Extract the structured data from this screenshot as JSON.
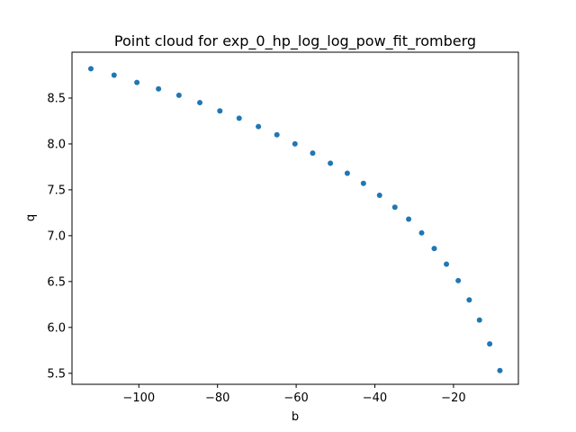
{
  "chart_data": {
    "type": "scatter",
    "title": "Point cloud for exp_0_hp_log_log_pow_fit_romberg",
    "xlabel": "b",
    "ylabel": "q",
    "xlim": [
      -117.0,
      -3.5
    ],
    "ylim": [
      5.38,
      9.0
    ],
    "grid": false,
    "marker_color": "#1f77b4",
    "xticks": [
      {
        "value": -100,
        "label": "−100"
      },
      {
        "value": -80,
        "label": "−80"
      },
      {
        "value": -60,
        "label": "−60"
      },
      {
        "value": -40,
        "label": "−40"
      },
      {
        "value": -20,
        "label": "−20"
      }
    ],
    "yticks": [
      {
        "value": 5.5,
        "label": "5.5"
      },
      {
        "value": 6.0,
        "label": "6.0"
      },
      {
        "value": 6.5,
        "label": "6.5"
      },
      {
        "value": 7.0,
        "label": "7.0"
      },
      {
        "value": 7.5,
        "label": "7.5"
      },
      {
        "value": 8.0,
        "label": "8.0"
      },
      {
        "value": 8.5,
        "label": "8.5"
      }
    ],
    "x": [
      -112.2,
      -106.3,
      -100.5,
      -95.0,
      -89.8,
      -84.5,
      -79.4,
      -74.5,
      -69.6,
      -64.9,
      -60.3,
      -55.8,
      -51.3,
      -47.0,
      -42.9,
      -38.8,
      -34.9,
      -31.4,
      -28.1,
      -24.9,
      -21.8,
      -18.8,
      -16.0,
      -13.4,
      -10.8,
      -8.2
    ],
    "y": [
      8.82,
      8.75,
      8.67,
      8.6,
      8.53,
      8.45,
      8.36,
      8.28,
      8.19,
      8.1,
      8.0,
      7.9,
      7.79,
      7.68,
      7.57,
      7.44,
      7.31,
      7.18,
      7.03,
      6.86,
      6.69,
      6.51,
      6.3,
      6.08,
      5.82,
      5.53
    ]
  }
}
